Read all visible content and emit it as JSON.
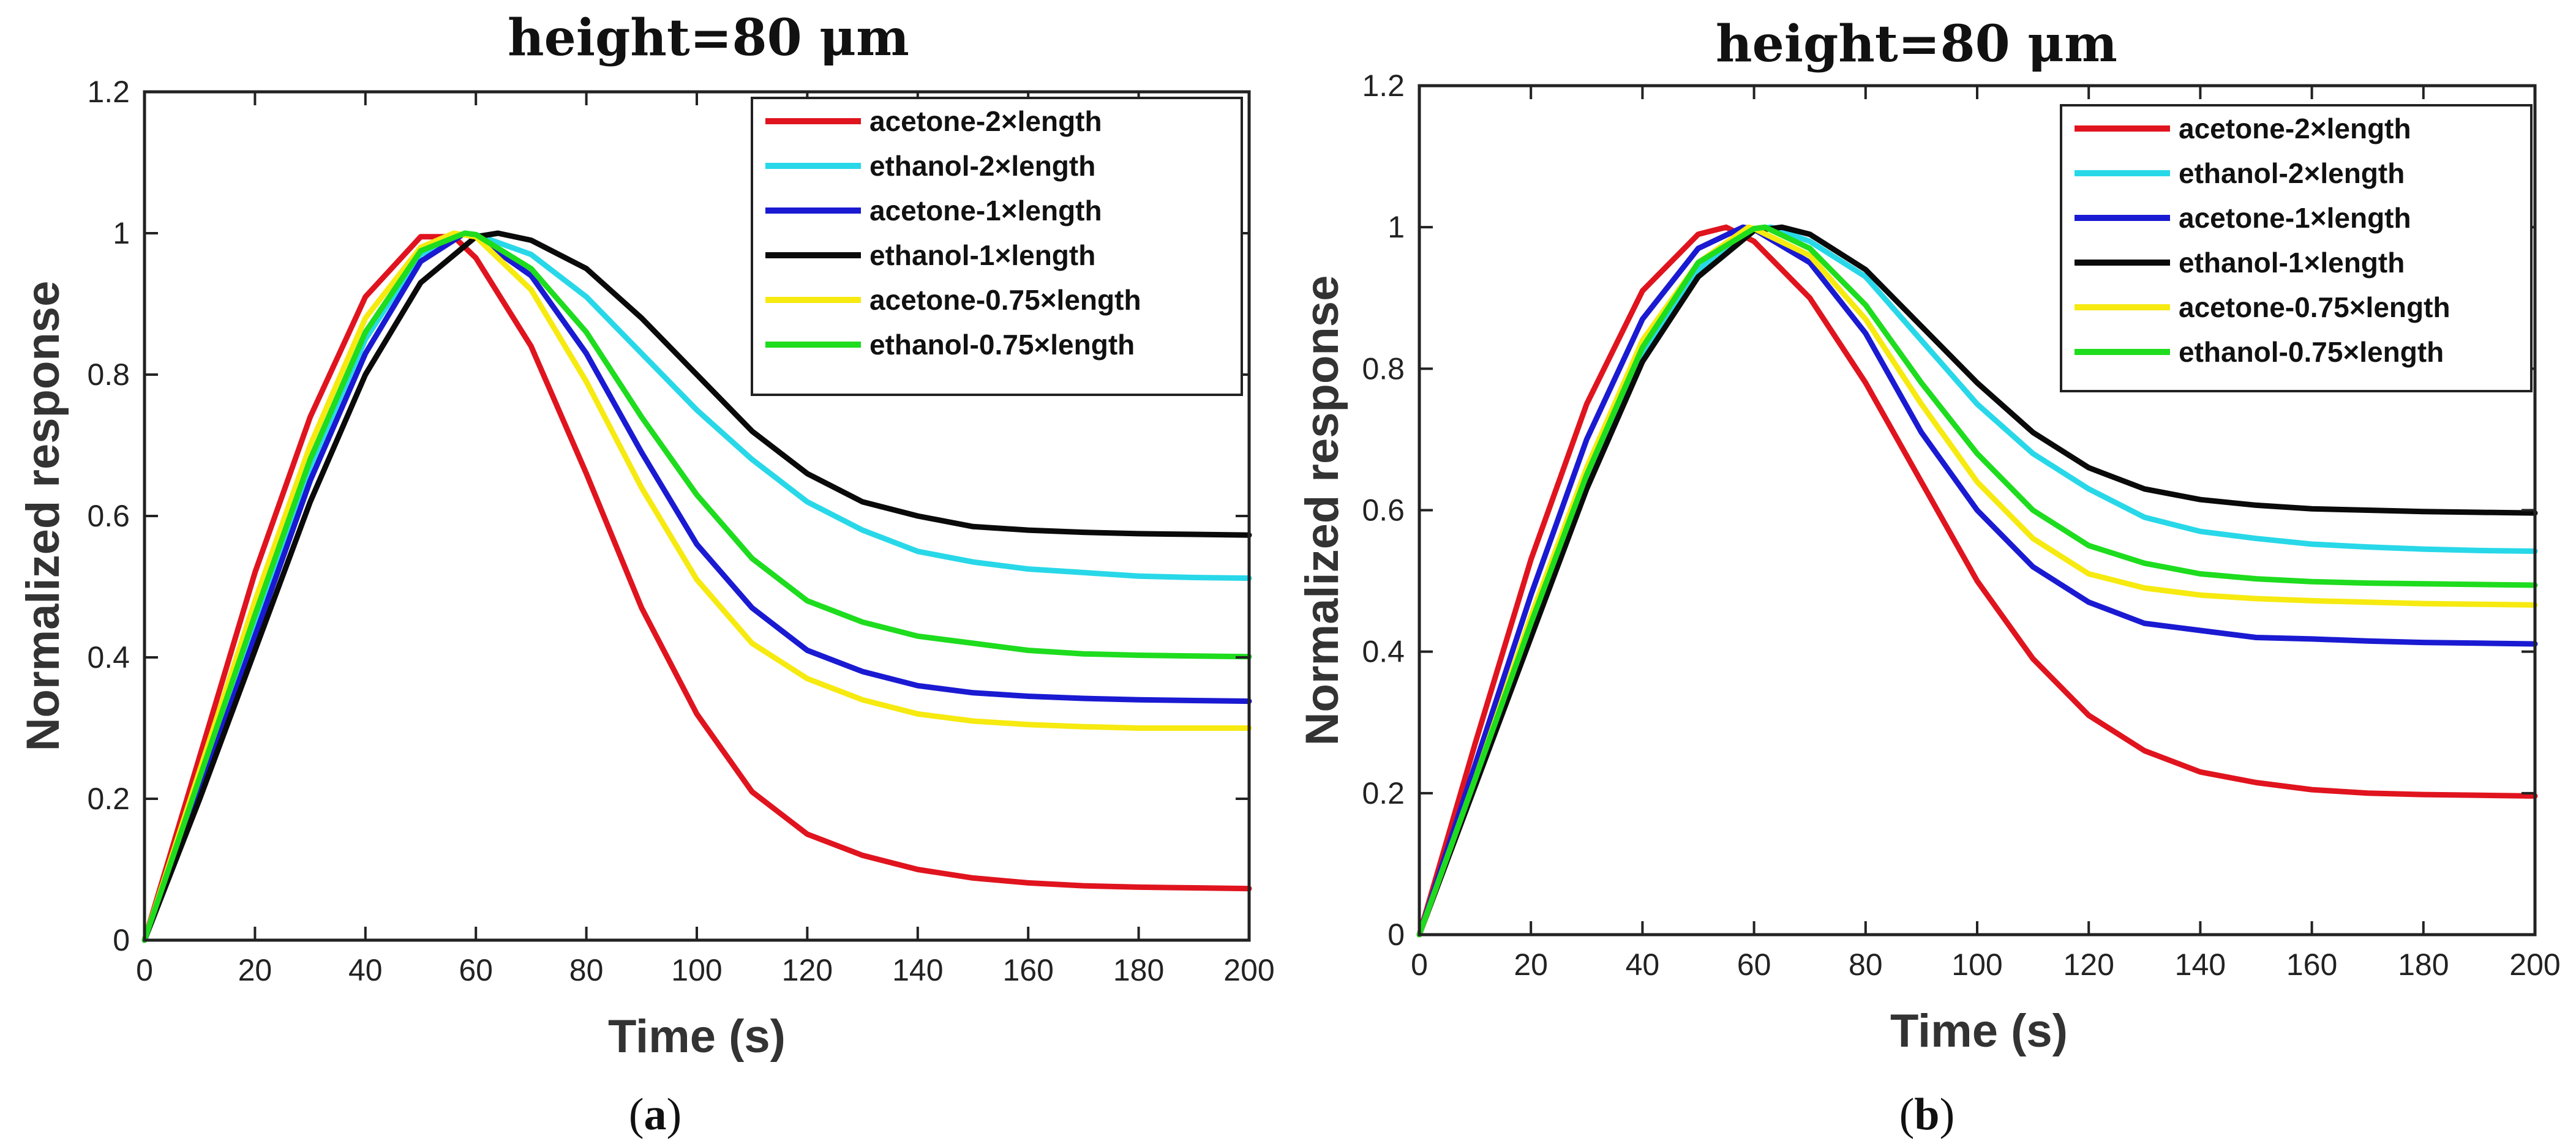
{
  "figure": {
    "panels": [
      {
        "caption_open": "(",
        "caption_letter": "a",
        "caption_close": ")"
      },
      {
        "caption_open": "(",
        "caption_letter": "b",
        "caption_close": ")"
      }
    ]
  },
  "chart_data": [
    {
      "type": "line",
      "title": "height=80 μm",
      "xlabel": "Time (s)",
      "ylabel": "Normalized response",
      "xlim": [
        0,
        200
      ],
      "ylim": [
        0,
        1.2
      ],
      "xticks": [
        "0",
        "20",
        "40",
        "60",
        "80",
        "100",
        "120",
        "140",
        "160",
        "180",
        "200"
      ],
      "yticks": [
        "0",
        "0.2",
        "0.4",
        "0.6",
        "0.8",
        "1",
        "1.2"
      ],
      "grid": false,
      "legend_position": "top-right",
      "series": [
        {
          "name": "acetone-2×length",
          "color": "#e0141e",
          "x": [
            0,
            10,
            20,
            30,
            40,
            50,
            56,
            60,
            70,
            80,
            90,
            100,
            110,
            120,
            130,
            140,
            150,
            160,
            170,
            180,
            190,
            200
          ],
          "y": [
            0,
            0.26,
            0.52,
            0.74,
            0.91,
            0.995,
            0.995,
            0.965,
            0.84,
            0.66,
            0.47,
            0.32,
            0.21,
            0.15,
            0.12,
            0.1,
            0.088,
            0.081,
            0.077,
            0.075,
            0.074,
            0.073
          ]
        },
        {
          "name": "ethanol-2×length",
          "color": "#28d8e8",
          "x": [
            0,
            10,
            20,
            30,
            40,
            50,
            58,
            60,
            70,
            80,
            90,
            100,
            110,
            120,
            130,
            140,
            150,
            160,
            170,
            180,
            190,
            200
          ],
          "y": [
            0,
            0.22,
            0.45,
            0.67,
            0.85,
            0.97,
            1.0,
            0.998,
            0.97,
            0.91,
            0.83,
            0.75,
            0.68,
            0.62,
            0.58,
            0.55,
            0.535,
            0.525,
            0.52,
            0.515,
            0.513,
            0.512
          ]
        },
        {
          "name": "acetone-1×length",
          "color": "#1a1ad2",
          "x": [
            0,
            10,
            20,
            30,
            40,
            50,
            58,
            60,
            70,
            80,
            90,
            100,
            110,
            120,
            130,
            140,
            150,
            160,
            170,
            180,
            190,
            200
          ],
          "y": [
            0,
            0.21,
            0.43,
            0.65,
            0.83,
            0.96,
            1.0,
            0.995,
            0.94,
            0.83,
            0.69,
            0.56,
            0.47,
            0.41,
            0.38,
            0.36,
            0.35,
            0.345,
            0.342,
            0.34,
            0.339,
            0.338
          ]
        },
        {
          "name": "ethanol-1×length",
          "color": "#0a0a0a",
          "x": [
            0,
            10,
            20,
            30,
            40,
            50,
            60,
            64,
            70,
            80,
            90,
            100,
            110,
            120,
            130,
            140,
            150,
            160,
            170,
            180,
            190,
            200
          ],
          "y": [
            0,
            0.2,
            0.41,
            0.62,
            0.8,
            0.93,
            0.995,
            1.0,
            0.99,
            0.95,
            0.88,
            0.8,
            0.72,
            0.66,
            0.62,
            0.6,
            0.585,
            0.58,
            0.577,
            0.575,
            0.574,
            0.573
          ]
        },
        {
          "name": "acetone-0.75×length",
          "color": "#f6ea10",
          "x": [
            0,
            10,
            20,
            30,
            40,
            50,
            56,
            60,
            70,
            80,
            90,
            100,
            110,
            120,
            130,
            140,
            150,
            160,
            170,
            180,
            190,
            200
          ],
          "y": [
            0,
            0.24,
            0.48,
            0.7,
            0.88,
            0.98,
            1.0,
            0.995,
            0.92,
            0.79,
            0.64,
            0.51,
            0.42,
            0.37,
            0.34,
            0.32,
            0.31,
            0.305,
            0.302,
            0.3,
            0.3,
            0.3
          ]
        },
        {
          "name": "ethanol-0.75×length",
          "color": "#1edc1e",
          "x": [
            0,
            10,
            20,
            30,
            40,
            50,
            58,
            60,
            70,
            80,
            90,
            100,
            110,
            120,
            130,
            140,
            150,
            160,
            170,
            180,
            190,
            200
          ],
          "y": [
            0,
            0.23,
            0.46,
            0.68,
            0.86,
            0.975,
            1.0,
            0.998,
            0.95,
            0.86,
            0.74,
            0.63,
            0.54,
            0.48,
            0.45,
            0.43,
            0.42,
            0.41,
            0.405,
            0.403,
            0.402,
            0.401
          ]
        }
      ]
    },
    {
      "type": "line",
      "title": "height=80 μm",
      "xlabel": "Time (s)",
      "ylabel": "Normalized response",
      "xlim": [
        0,
        200
      ],
      "ylim": [
        0,
        1.2
      ],
      "xticks": [
        "0",
        "20",
        "40",
        "60",
        "80",
        "100",
        "120",
        "140",
        "160",
        "180",
        "200"
      ],
      "yticks": [
        "0",
        "0.2",
        "0.4",
        "0.6",
        "0.8",
        "1",
        "1.2"
      ],
      "grid": false,
      "legend_position": "top-right",
      "series": [
        {
          "name": "acetone-2×length",
          "color": "#e0141e",
          "x": [
            0,
            10,
            20,
            30,
            40,
            50,
            55,
            60,
            70,
            80,
            90,
            100,
            110,
            120,
            130,
            140,
            150,
            160,
            170,
            180,
            190,
            200
          ],
          "y": [
            0,
            0.27,
            0.53,
            0.75,
            0.91,
            0.99,
            1.0,
            0.98,
            0.9,
            0.78,
            0.64,
            0.5,
            0.39,
            0.31,
            0.26,
            0.23,
            0.215,
            0.205,
            0.2,
            0.198,
            0.197,
            0.196
          ]
        },
        {
          "name": "ethanol-2×length",
          "color": "#28d8e8",
          "x": [
            0,
            10,
            20,
            30,
            40,
            50,
            60,
            63,
            70,
            80,
            90,
            100,
            110,
            120,
            130,
            140,
            150,
            160,
            170,
            180,
            190,
            200
          ],
          "y": [
            0,
            0.22,
            0.44,
            0.65,
            0.82,
            0.94,
            0.997,
            1.0,
            0.98,
            0.93,
            0.84,
            0.75,
            0.68,
            0.63,
            0.59,
            0.57,
            0.56,
            0.552,
            0.548,
            0.545,
            0.543,
            0.542
          ]
        },
        {
          "name": "acetone-1×length",
          "color": "#1a1ad2",
          "x": [
            0,
            10,
            20,
            30,
            40,
            50,
            58,
            60,
            70,
            80,
            90,
            100,
            110,
            120,
            130,
            140,
            150,
            160,
            170,
            180,
            190,
            200
          ],
          "y": [
            0,
            0.24,
            0.48,
            0.7,
            0.87,
            0.97,
            1.0,
            0.997,
            0.95,
            0.85,
            0.71,
            0.6,
            0.52,
            0.47,
            0.44,
            0.43,
            0.42,
            0.418,
            0.415,
            0.413,
            0.412,
            0.411
          ]
        },
        {
          "name": "ethanol-1×length",
          "color": "#0a0a0a",
          "x": [
            0,
            10,
            20,
            30,
            40,
            50,
            60,
            65,
            70,
            80,
            90,
            100,
            110,
            120,
            130,
            140,
            150,
            160,
            170,
            180,
            190,
            200
          ],
          "y": [
            0,
            0.21,
            0.42,
            0.63,
            0.81,
            0.93,
            0.995,
            1.0,
            0.99,
            0.94,
            0.86,
            0.78,
            0.71,
            0.66,
            0.63,
            0.615,
            0.607,
            0.602,
            0.6,
            0.598,
            0.597,
            0.596
          ]
        },
        {
          "name": "acetone-0.75×length",
          "color": "#f6ea10",
          "x": [
            0,
            10,
            20,
            30,
            40,
            50,
            59,
            60,
            70,
            80,
            90,
            100,
            110,
            120,
            130,
            140,
            150,
            160,
            170,
            180,
            190,
            200
          ],
          "y": [
            0,
            0.22,
            0.45,
            0.66,
            0.84,
            0.95,
            1.0,
            0.998,
            0.96,
            0.87,
            0.75,
            0.64,
            0.56,
            0.51,
            0.49,
            0.48,
            0.475,
            0.472,
            0.47,
            0.468,
            0.467,
            0.466
          ]
        },
        {
          "name": "ethanol-0.75×length",
          "color": "#1edc1e",
          "x": [
            0,
            10,
            20,
            30,
            40,
            50,
            60,
            62,
            70,
            80,
            90,
            100,
            110,
            120,
            130,
            140,
            150,
            160,
            170,
            180,
            190,
            200
          ],
          "y": [
            0,
            0.22,
            0.44,
            0.65,
            0.83,
            0.95,
            0.998,
            1.0,
            0.97,
            0.89,
            0.78,
            0.68,
            0.6,
            0.55,
            0.525,
            0.51,
            0.503,
            0.499,
            0.497,
            0.496,
            0.495,
            0.494
          ]
        }
      ]
    }
  ]
}
